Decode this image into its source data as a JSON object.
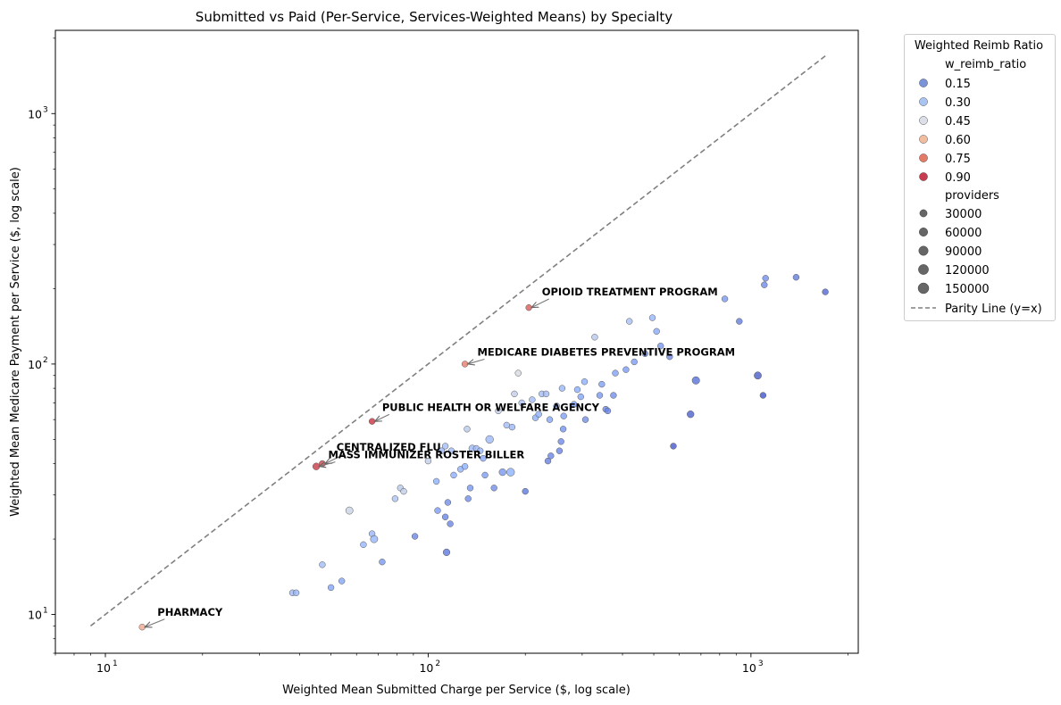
{
  "chart_data": {
    "type": "scatter",
    "title": "Submitted vs Paid (Per-Service, Services-Weighted Means) by Specialty",
    "xlabel": "Weighted Mean Submitted Charge per Service ($, log scale)",
    "ylabel": "Weighted Mean Medicare Payment per Service ($, log scale)",
    "xscale": "log",
    "yscale": "log",
    "xlim": [
      7,
      2150
    ],
    "ylim": [
      7,
      2150
    ],
    "x_ticks": [
      {
        "value": 10,
        "base": "10",
        "exp": "1"
      },
      {
        "value": 100,
        "base": "10",
        "exp": "2"
      },
      {
        "value": 1000,
        "base": "10",
        "exp": "3"
      }
    ],
    "y_ticks": [
      {
        "value": 10,
        "base": "10",
        "exp": "1"
      },
      {
        "value": 100,
        "base": "10",
        "exp": "2"
      },
      {
        "value": 1000,
        "base": "10",
        "exp": "3"
      }
    ],
    "grid": false,
    "legend": {
      "title": "Weighted Reimb Ratio",
      "placement": "outside-right",
      "hue_header": "w_reimb_ratio",
      "hue_entries": [
        {
          "label": "0.15",
          "color": "#7b93d9"
        },
        {
          "label": "0.30",
          "color": "#a9c4f1"
        },
        {
          "label": "0.45",
          "color": "#dcdfe8"
        },
        {
          "label": "0.60",
          "color": "#f1bda1"
        },
        {
          "label": "0.75",
          "color": "#e27a66"
        },
        {
          "label": "0.90",
          "color": "#c83c4f"
        }
      ],
      "size_header": "providers",
      "size_entries": [
        {
          "label": "30000",
          "providers": 30000
        },
        {
          "label": "60000",
          "providers": 60000
        },
        {
          "label": "90000",
          "providers": 90000
        },
        {
          "label": "120000",
          "providers": 120000
        },
        {
          "label": "150000",
          "providers": 150000
        }
      ],
      "line_entry": {
        "label": "Parity Line (y=x)",
        "color": "#808080"
      }
    },
    "parity_line": {
      "x": [
        9,
        1700
      ],
      "y": [
        9,
        1700
      ],
      "color": "#808080"
    },
    "annotations": [
      {
        "label": "OPIOID TREATMENT PROGRAM",
        "point": [
          205,
          168
        ],
        "text_at": [
          225,
          188
        ]
      },
      {
        "label": "MEDICARE DIABETES PREVENTIVE PROGRAM",
        "point": [
          130,
          100
        ],
        "text_at": [
          142,
          108
        ]
      },
      {
        "label": "PUBLIC HEALTH OR WELFARE AGENCY",
        "point": [
          67,
          59
        ],
        "text_at": [
          72,
          65
        ]
      },
      {
        "label": "CENTRALIZED FLU",
        "point": [
          47,
          40
        ],
        "text_at": [
          52,
          45
        ]
      },
      {
        "label": "MASS IMMUNIZER ROSTER BILLER",
        "point": [
          45,
          39
        ],
        "text_at": [
          49,
          42
        ]
      },
      {
        "label": "PHARMACY",
        "point": [
          13,
          8.9
        ],
        "text_at": [
          14.5,
          9.9
        ]
      }
    ],
    "points": [
      {
        "x": 205,
        "y": 168,
        "ratio": 0.82,
        "providers": 8000
      },
      {
        "x": 130,
        "y": 100,
        "ratio": 0.77,
        "providers": 9000
      },
      {
        "x": 67,
        "y": 59,
        "ratio": 0.88,
        "providers": 9000
      },
      {
        "x": 47,
        "y": 40,
        "ratio": 0.85,
        "providers": 12000
      },
      {
        "x": 45,
        "y": 39,
        "ratio": 0.87,
        "providers": 22000
      },
      {
        "x": 13,
        "y": 8.9,
        "ratio": 0.68,
        "providers": 9000
      },
      {
        "x": 38,
        "y": 12.2,
        "ratio": 0.32,
        "providers": 9000
      },
      {
        "x": 39,
        "y": 12.2,
        "ratio": 0.31,
        "providers": 9000
      },
      {
        "x": 47,
        "y": 15.8,
        "ratio": 0.33,
        "providers": 9000
      },
      {
        "x": 50,
        "y": 12.8,
        "ratio": 0.25,
        "providers": 9000
      },
      {
        "x": 54,
        "y": 13.6,
        "ratio": 0.25,
        "providers": 9000
      },
      {
        "x": 57,
        "y": 26,
        "ratio": 0.45,
        "providers": 30000
      },
      {
        "x": 63,
        "y": 19,
        "ratio": 0.3,
        "providers": 9000
      },
      {
        "x": 67,
        "y": 21,
        "ratio": 0.31,
        "providers": 9000
      },
      {
        "x": 68,
        "y": 20,
        "ratio": 0.3,
        "providers": 30000
      },
      {
        "x": 72,
        "y": 16.2,
        "ratio": 0.22,
        "providers": 9000
      },
      {
        "x": 79,
        "y": 29,
        "ratio": 0.37,
        "providers": 9000
      },
      {
        "x": 82,
        "y": 32,
        "ratio": 0.4,
        "providers": 9000
      },
      {
        "x": 84,
        "y": 31,
        "ratio": 0.42,
        "providers": 9000
      },
      {
        "x": 91,
        "y": 20.5,
        "ratio": 0.18,
        "providers": 9000
      },
      {
        "x": 100,
        "y": 41,
        "ratio": 0.42,
        "providers": 9000
      },
      {
        "x": 106,
        "y": 34,
        "ratio": 0.28,
        "providers": 9000
      },
      {
        "x": 107,
        "y": 26,
        "ratio": 0.23,
        "providers": 9000
      },
      {
        "x": 110,
        "y": 45,
        "ratio": 0.32,
        "providers": 9000
      },
      {
        "x": 113,
        "y": 47,
        "ratio": 0.34,
        "providers": 9000
      },
      {
        "x": 113,
        "y": 24.5,
        "ratio": 0.18,
        "providers": 9000
      },
      {
        "x": 114,
        "y": 17.7,
        "ratio": 0.15,
        "providers": 20000
      },
      {
        "x": 115,
        "y": 28,
        "ratio": 0.2,
        "providers": 9000
      },
      {
        "x": 117,
        "y": 23,
        "ratio": 0.18,
        "providers": 9000
      },
      {
        "x": 118,
        "y": 45,
        "ratio": 0.33,
        "providers": 9000
      },
      {
        "x": 120,
        "y": 36,
        "ratio": 0.27,
        "providers": 9000
      },
      {
        "x": 126,
        "y": 38,
        "ratio": 0.28,
        "providers": 9000
      },
      {
        "x": 130,
        "y": 39,
        "ratio": 0.28,
        "providers": 9000
      },
      {
        "x": 132,
        "y": 55,
        "ratio": 0.4,
        "providers": 9000
      },
      {
        "x": 133,
        "y": 29,
        "ratio": 0.2,
        "providers": 9000
      },
      {
        "x": 135,
        "y": 32,
        "ratio": 0.22,
        "providers": 9000
      },
      {
        "x": 137,
        "y": 46,
        "ratio": 0.32,
        "providers": 20000
      },
      {
        "x": 141,
        "y": 46,
        "ratio": 0.32,
        "providers": 9000
      },
      {
        "x": 145,
        "y": 45,
        "ratio": 0.3,
        "providers": 9000
      },
      {
        "x": 148,
        "y": 42,
        "ratio": 0.26,
        "providers": 9000
      },
      {
        "x": 150,
        "y": 36,
        "ratio": 0.23,
        "providers": 9000
      },
      {
        "x": 155,
        "y": 50,
        "ratio": 0.32,
        "providers": 40000
      },
      {
        "x": 160,
        "y": 32,
        "ratio": 0.2,
        "providers": 9000
      },
      {
        "x": 165,
        "y": 65,
        "ratio": 0.42,
        "providers": 9000
      },
      {
        "x": 170,
        "y": 37,
        "ratio": 0.22,
        "providers": 22000
      },
      {
        "x": 175,
        "y": 57,
        "ratio": 0.33,
        "providers": 9000
      },
      {
        "x": 180,
        "y": 37,
        "ratio": 0.28,
        "providers": 45000
      },
      {
        "x": 182,
        "y": 56,
        "ratio": 0.31,
        "providers": 9000
      },
      {
        "x": 185,
        "y": 76,
        "ratio": 0.42,
        "providers": 9000
      },
      {
        "x": 190,
        "y": 92,
        "ratio": 0.48,
        "providers": 9000
      },
      {
        "x": 195,
        "y": 70,
        "ratio": 0.36,
        "providers": 9000
      },
      {
        "x": 200,
        "y": 31,
        "ratio": 0.15,
        "providers": 9000
      },
      {
        "x": 210,
        "y": 72,
        "ratio": 0.34,
        "providers": 9000
      },
      {
        "x": 215,
        "y": 61,
        "ratio": 0.28,
        "providers": 9000
      },
      {
        "x": 220,
        "y": 63,
        "ratio": 0.28,
        "providers": 9000
      },
      {
        "x": 225,
        "y": 76,
        "ratio": 0.34,
        "providers": 9000
      },
      {
        "x": 232,
        "y": 76,
        "ratio": 0.33,
        "providers": 9000
      },
      {
        "x": 235,
        "y": 41,
        "ratio": 0.17,
        "providers": 9000
      },
      {
        "x": 238,
        "y": 60,
        "ratio": 0.25,
        "providers": 9000
      },
      {
        "x": 240,
        "y": 43,
        "ratio": 0.18,
        "providers": 9000
      },
      {
        "x": 250,
        "y": 68,
        "ratio": 0.27,
        "providers": 9000
      },
      {
        "x": 255,
        "y": 45,
        "ratio": 0.18,
        "providers": 9000
      },
      {
        "x": 258,
        "y": 49,
        "ratio": 0.19,
        "providers": 9000
      },
      {
        "x": 260,
        "y": 80,
        "ratio": 0.31,
        "providers": 9000
      },
      {
        "x": 262,
        "y": 55,
        "ratio": 0.21,
        "providers": 9000
      },
      {
        "x": 263,
        "y": 62,
        "ratio": 0.24,
        "providers": 9000
      },
      {
        "x": 283,
        "y": 69,
        "ratio": 0.24,
        "providers": 9000
      },
      {
        "x": 290,
        "y": 79,
        "ratio": 0.27,
        "providers": 9000
      },
      {
        "x": 297,
        "y": 74,
        "ratio": 0.25,
        "providers": 9000
      },
      {
        "x": 305,
        "y": 85,
        "ratio": 0.28,
        "providers": 9000
      },
      {
        "x": 307,
        "y": 60,
        "ratio": 0.2,
        "providers": 9000
      },
      {
        "x": 328,
        "y": 128,
        "ratio": 0.39,
        "providers": 9000
      },
      {
        "x": 340,
        "y": 75,
        "ratio": 0.22,
        "providers": 9000
      },
      {
        "x": 345,
        "y": 83,
        "ratio": 0.24,
        "providers": 9000
      },
      {
        "x": 355,
        "y": 66,
        "ratio": 0.19,
        "providers": 9000
      },
      {
        "x": 360,
        "y": 65,
        "ratio": 0.18,
        "providers": 9000
      },
      {
        "x": 375,
        "y": 75,
        "ratio": 0.2,
        "providers": 9000
      },
      {
        "x": 380,
        "y": 92,
        "ratio": 0.24,
        "providers": 9000
      },
      {
        "x": 410,
        "y": 95,
        "ratio": 0.23,
        "providers": 9000
      },
      {
        "x": 420,
        "y": 148,
        "ratio": 0.35,
        "providers": 9000
      },
      {
        "x": 435,
        "y": 102,
        "ratio": 0.23,
        "providers": 9000
      },
      {
        "x": 470,
        "y": 110,
        "ratio": 0.23,
        "providers": 9000
      },
      {
        "x": 495,
        "y": 153,
        "ratio": 0.31,
        "providers": 9000
      },
      {
        "x": 510,
        "y": 135,
        "ratio": 0.26,
        "providers": 9000
      },
      {
        "x": 525,
        "y": 118,
        "ratio": 0.22,
        "providers": 9000
      },
      {
        "x": 560,
        "y": 107,
        "ratio": 0.19,
        "providers": 9000
      },
      {
        "x": 575,
        "y": 47,
        "ratio": 0.08,
        "providers": 9000
      },
      {
        "x": 650,
        "y": 63,
        "ratio": 0.1,
        "providers": 22000
      },
      {
        "x": 675,
        "y": 86,
        "ratio": 0.13,
        "providers": 35000
      },
      {
        "x": 830,
        "y": 182,
        "ratio": 0.22,
        "providers": 9000
      },
      {
        "x": 920,
        "y": 148,
        "ratio": 0.16,
        "providers": 9000
      },
      {
        "x": 1050,
        "y": 90,
        "ratio": 0.09,
        "providers": 30000
      },
      {
        "x": 1090,
        "y": 75,
        "ratio": 0.07,
        "providers": 9000
      },
      {
        "x": 1100,
        "y": 207,
        "ratio": 0.19,
        "providers": 9000
      },
      {
        "x": 1110,
        "y": 220,
        "ratio": 0.2,
        "providers": 9000
      },
      {
        "x": 1380,
        "y": 222,
        "ratio": 0.16,
        "providers": 9000
      },
      {
        "x": 1700,
        "y": 194,
        "ratio": 0.11,
        "providers": 9000
      }
    ]
  }
}
